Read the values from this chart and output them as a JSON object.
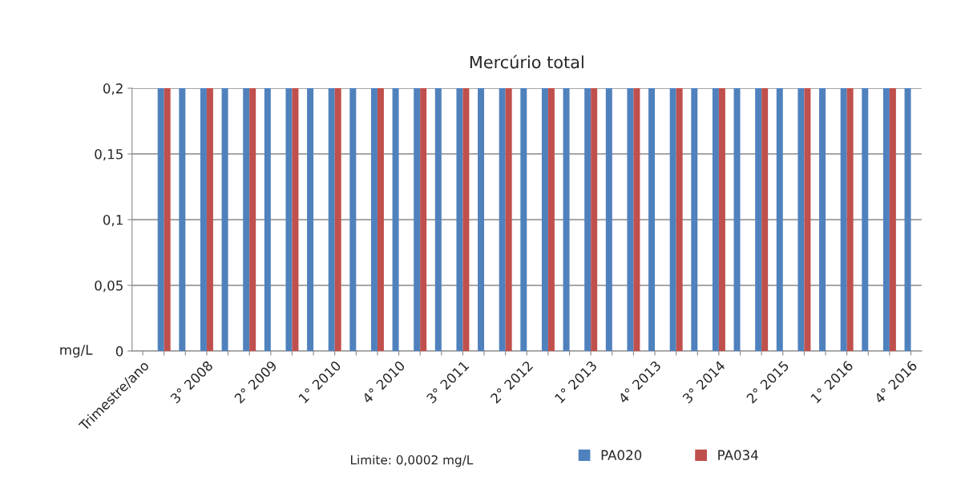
{
  "chart_data": {
    "type": "bar",
    "title": "Mercúrio total",
    "ylabel": "mg/L",
    "categories": [
      "Trimestre/ano",
      null,
      null,
      "3° 2008",
      null,
      null,
      "2° 2009",
      null,
      null,
      "1° 2010",
      null,
      null,
      "4° 2010",
      null,
      null,
      "3° 2011",
      null,
      null,
      "2° 2012",
      null,
      null,
      "1° 2013",
      null,
      null,
      "4° 2013",
      null,
      null,
      "3° 2014",
      null,
      null,
      "2° 2015",
      null,
      null,
      "1° 2016",
      null,
      null,
      "4° 2016"
    ],
    "series": [
      {
        "name": "PA020",
        "color": "#4f81bd",
        "values": [
          0,
          0.2,
          0.2,
          0.2,
          0.2,
          0.2,
          0.2,
          0.2,
          0.2,
          0.2,
          0.2,
          0.2,
          0.2,
          0.2,
          0.2,
          0.2,
          0.2,
          0.2,
          0.2,
          0.2,
          0.2,
          0.2,
          0.2,
          0.2,
          0.2,
          0.2,
          0.2,
          0.2,
          0.2,
          0.2,
          0.2,
          0.2,
          0.2,
          0.2,
          0.2,
          0.2,
          0.2
        ]
      },
      {
        "name": "PA034",
        "color": "#c0504d",
        "values": [
          0,
          0.2,
          null,
          0.2,
          null,
          0.2,
          null,
          0.2,
          null,
          0.2,
          null,
          0.2,
          null,
          0.2,
          null,
          0.2,
          null,
          0.2,
          null,
          0.2,
          null,
          0.2,
          null,
          0.2,
          null,
          0.2,
          null,
          0.2,
          null,
          0.2,
          null,
          0.2,
          null,
          0.2,
          null,
          0.2,
          null
        ]
      }
    ],
    "ylim": [
      0,
      0.2
    ],
    "yticks": [
      0,
      {
        "value": 0.05,
        "label": "0,05"
      },
      {
        "value": 0.1,
        "label": "0,1"
      },
      {
        "value": 0.15,
        "label": "0,15"
      },
      {
        "value": 0.2,
        "label": "0,2"
      }
    ],
    "grid": "y",
    "legend": "bottom",
    "annotations": [
      "Limite: 0,0002 mg/L"
    ]
  }
}
